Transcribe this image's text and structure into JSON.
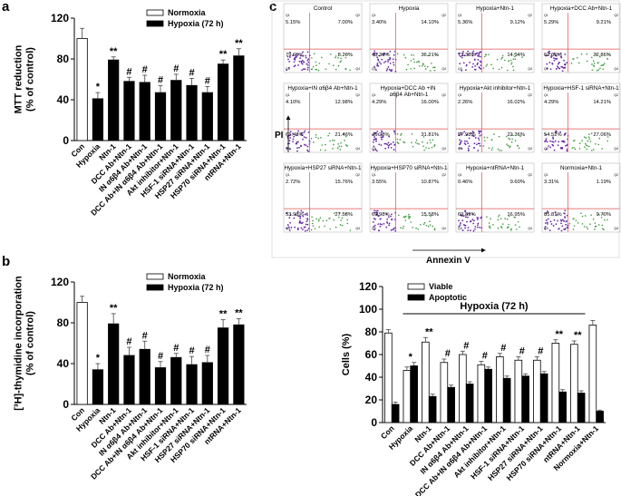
{
  "chart_data": [
    {
      "type": "bar",
      "panel_label": "a",
      "ylabel": [
        "MTT reduction",
        "(% of control)"
      ],
      "categories": [
        "Con",
        "Hypoxia",
        "Ntn-1",
        "DCC Ab+Ntn-1",
        "IN α6β4 Ab+Ntn-1",
        "DCC Ab+IN α6β4 Ab+Ntn-1",
        "Akt inhibitor+Ntn-1",
        "HSF-1 siRNA+Ntn-1",
        "HSP27 siRNA+Ntn-1",
        "HSP70 siRNA+Ntn-1",
        "ntRNA+Ntn-1"
      ],
      "series": [
        {
          "name": "Normoxia",
          "color": "#ffffff",
          "values": [
            100,
            null,
            null,
            null,
            null,
            null,
            null,
            null,
            null,
            null,
            null
          ],
          "errors": [
            10,
            null,
            null,
            null,
            null,
            null,
            null,
            null,
            null,
            null,
            null
          ]
        },
        {
          "name": "Hypoxia (72 h)",
          "color": "#000000",
          "values": [
            null,
            41,
            79,
            58,
            57,
            47,
            59,
            54,
            47,
            75,
            83
          ],
          "errors": [
            null,
            6,
            3,
            4,
            7,
            7,
            6,
            7,
            6,
            4,
            7
          ]
        }
      ],
      "annotations": [
        null,
        "*",
        "**",
        "#",
        "#",
        "#",
        "#",
        "#",
        "#",
        "**",
        "**"
      ],
      "ylim": [
        0,
        120
      ],
      "yticks": [
        0,
        40,
        80,
        120
      ],
      "legend": "upper right"
    },
    {
      "type": "bar",
      "panel_label": "b",
      "ylabel": [
        "[³H]-thymidine incorporation",
        "(% of control)"
      ],
      "categories": [
        "Con",
        "Hypoxia",
        "Ntn-1",
        "DCC Ab+Ntn-1",
        "IN α6β4 Ab+Ntn-1",
        "DCC Ab+IN α6β4 Ab+Ntn-1",
        "Akt inhibitor+Ntn-1",
        "HSF-1 siRNA+Ntn-1",
        "HSP27 siRNA+Ntn-1",
        "HSP70 siRNA+Ntn-1",
        "ntRNA+Ntn-1"
      ],
      "series": [
        {
          "name": "Normoxia",
          "color": "#ffffff",
          "values": [
            100,
            null,
            null,
            null,
            null,
            null,
            null,
            null,
            null,
            null,
            null
          ],
          "errors": [
            6,
            null,
            null,
            null,
            null,
            null,
            null,
            null,
            null,
            null,
            null
          ]
        },
        {
          "name": "Hypoxia (72 h)",
          "color": "#000000",
          "values": [
            null,
            34,
            79,
            48,
            54,
            36,
            46,
            39,
            41,
            75,
            78
          ],
          "errors": [
            null,
            6,
            10,
            8,
            8,
            6,
            4,
            8,
            7,
            8,
            6
          ]
        }
      ],
      "annotations": [
        null,
        "*",
        "**",
        "#",
        "#",
        "#",
        "#",
        "#",
        "#",
        "**",
        "**"
      ],
      "ylim": [
        0,
        120
      ],
      "yticks": [
        0,
        40,
        80,
        120
      ],
      "legend": "upper right"
    },
    {
      "type": "flow",
      "panel_label": "c",
      "x_label": "Annexin V",
      "y_label": "PI",
      "quadrant_names": [
        "Q1",
        "Q2",
        "Q3",
        "Q4"
      ],
      "panels": [
        {
          "title": "Control",
          "quadrants": [
            "5.15%",
            "7.00%",
            "79.65%",
            "8.20%"
          ]
        },
        {
          "title": "Hypoxia",
          "quadrants": [
            "3.40%",
            "14.10%",
            "46.30%",
            "36.21%"
          ]
        },
        {
          "title": "Hypoxia+Ntn-1",
          "quadrants": [
            "5.36%",
            "9.12%",
            "71.38%",
            "14.14%"
          ]
        },
        {
          "title": "Hypoxia+DCC Ab+Ntn-1",
          "quadrants": [
            "5.29%",
            "9.21%",
            "62.66%",
            "22.86%"
          ]
        },
        {
          "title": "Hypoxia+IN α6β4 Ab+Ntn-1",
          "quadrants": [
            "4.10%",
            "12.98%",
            "61.48%",
            "21.46%"
          ]
        },
        {
          "title": "Hypoxia+DCC Ab +IN α6β4 Ab+Ntn-1",
          "quadrants": [
            "4.29%",
            "16.00%",
            "46.28%",
            "31.81%"
          ]
        },
        {
          "title": "Hypoxia+Akt inhibitor+Ntn-1",
          "quadrants": [
            "2.26%",
            "16.02%",
            "57.98%",
            "22.36%"
          ]
        },
        {
          "title": "Hypoxia+HSF-1 siRNA+Ntn-1",
          "quadrants": [
            "4.29%",
            "14.21%",
            "54.52%",
            "27.06%"
          ]
        },
        {
          "title": "Hypoxia+HSP27 siRNA+Ntn-1",
          "quadrants": [
            "2.72%",
            "15.76%",
            "53.98%",
            "27.58%"
          ]
        },
        {
          "title": "Hypoxia+HSP70 siRNA+Ntn-1",
          "quadrants": [
            "3.55%",
            "10.87%",
            "69.98%",
            "15.58%"
          ]
        },
        {
          "title": "Hypoxia+ntRNA+Ntn-1",
          "quadrants": [
            "0.46%",
            "9.60%",
            "69.89%",
            "16.95%"
          ]
        },
        {
          "title": "Normoxia+Ntn-1",
          "quadrants": [
            "3.31%",
            "1.19%",
            "85.81%",
            "9.70%"
          ]
        }
      ]
    },
    {
      "type": "bar",
      "ylabel": [
        "Cells (%)"
      ],
      "group_label": "Hypoxia (72 h)",
      "categories": [
        "Con",
        "Hypoxia",
        "Ntn-1",
        "DCC Ab+Ntn-1",
        "IN α6β4 Ab+Ntn-1",
        "DCC Ab+IN α6β4 Ab+Ntn-1",
        "Akt inhibitor+Ntn-1",
        "HSF-1 siRNA+Ntn-1",
        "HSP27 siRNA+Ntn-1",
        "HSP70 siRNA+Ntn-1",
        "ntRNA+Ntn-1",
        "Normoxia+Ntn-1"
      ],
      "series": [
        {
          "name": "Viable",
          "color": "#ffffff",
          "values": [
            79,
            46,
            71,
            53,
            60,
            51,
            58,
            55,
            55,
            70,
            69,
            86
          ],
          "errors": [
            3,
            3,
            4,
            3,
            3,
            3,
            3,
            3,
            3,
            3,
            3,
            4
          ]
        },
        {
          "name": "Apoptotic",
          "color": "#000000",
          "values": [
            16,
            50,
            23,
            31,
            34,
            47,
            39,
            41,
            43,
            27,
            26,
            10
          ],
          "errors": [
            2,
            3,
            2,
            2,
            2,
            2,
            2,
            2,
            2,
            2,
            2,
            1
          ]
        }
      ],
      "annotations": [
        null,
        "*",
        "**",
        "#",
        "#",
        "#",
        "#",
        "#",
        "#",
        "**",
        "**",
        null
      ],
      "ylim": [
        0,
        120
      ],
      "yticks": [
        0,
        20,
        40,
        60,
        80,
        100,
        120
      ],
      "legend": "upper left"
    }
  ]
}
